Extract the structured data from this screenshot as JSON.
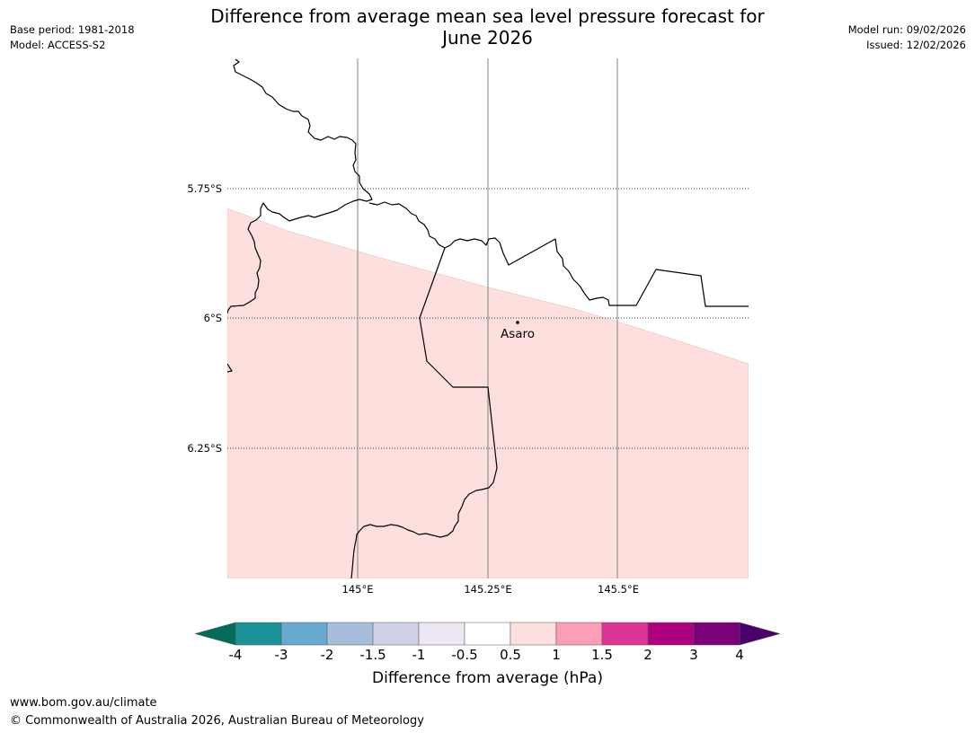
{
  "header": {
    "base_period": "Base period: 1981-2018",
    "model": "Model: ACCESS-S2",
    "title_line1": "Difference from average mean sea level pressure forecast for",
    "title_line2": "June 2026",
    "model_run": "Model run: 09/02/2026",
    "issued": "Issued: 12/02/2026"
  },
  "map": {
    "latitude_labels": [
      "5.75°S",
      "6°S",
      "6.25°S"
    ],
    "longitude_labels": [
      "145°E",
      "145.25°E",
      "145.5°E"
    ],
    "places": [
      {
        "name": "Asaro",
        "lon": 145.3,
        "lat": -6.01
      }
    ],
    "shaded_category": "0.5 to 1",
    "shaded_color": "#fde0dd",
    "coastline_color": "#000000",
    "grid_color": "#808080"
  },
  "colorbar": {
    "label": "Difference from average (hPa)",
    "ticks": [
      "-4",
      "-3",
      "-2",
      "-1.5",
      "-1",
      "-0.5",
      "0.5",
      "1",
      "1.5",
      "2",
      "3",
      "4"
    ],
    "colors": [
      "#1a9297",
      "#67a9cf",
      "#a6bddb",
      "#d0d1e6",
      "#ece7f2",
      "#ffffff",
      "#fde0dd",
      "#fa9fb5",
      "#dd3497",
      "#ae017e",
      "#7a0177"
    ],
    "under_color": "#016c59",
    "over_color": "#49006a"
  },
  "footer": {
    "url": "www.bom.gov.au/climate",
    "copyright": "© Commonwealth of Australia 2026, Australian Bureau of Meteorology"
  }
}
